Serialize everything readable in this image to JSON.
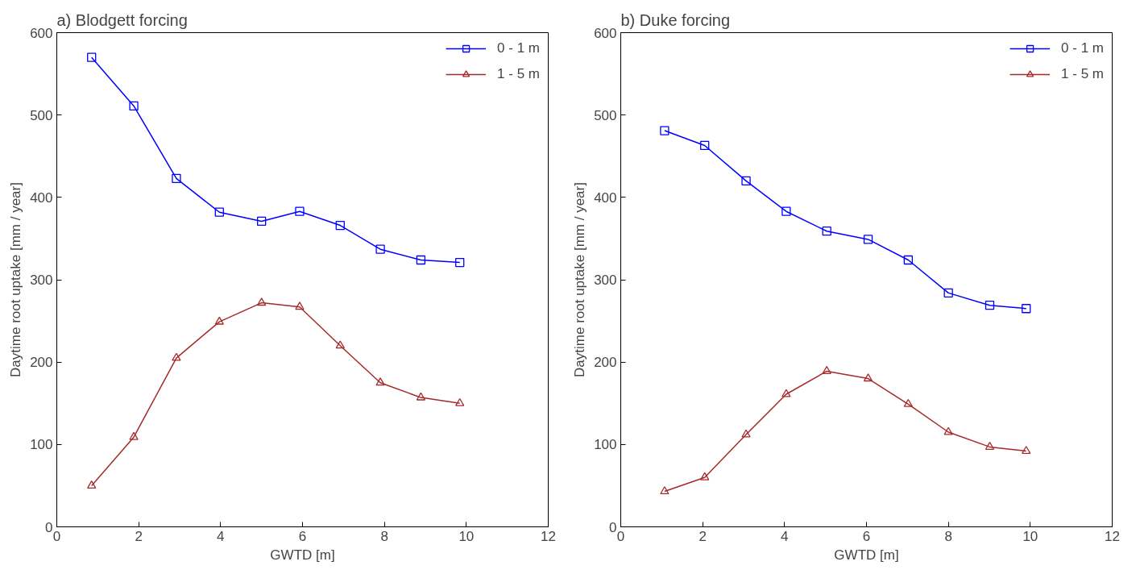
{
  "chart_data": [
    {
      "type": "line",
      "title": "a) Blodgett forcing",
      "xlabel": "GWTD [m]",
      "ylabel": "Daytime root uptake [mm / year]",
      "xlim": [
        0,
        12
      ],
      "ylim": [
        0,
        600
      ],
      "xticks": [
        0,
        2,
        4,
        6,
        8,
        10,
        12
      ],
      "yticks": [
        0,
        100,
        200,
        300,
        400,
        500,
        600
      ],
      "grid": false,
      "legend": "top right",
      "x": [
        0.85,
        1.88,
        2.92,
        3.97,
        5.0,
        5.93,
        6.92,
        7.9,
        8.89,
        9.84
      ],
      "series": [
        {
          "name": "0 - 1 m",
          "color": "#0000ff",
          "marker": "square",
          "values": [
            570,
            511,
            423,
            382,
            371,
            383,
            366,
            337,
            324,
            321
          ]
        },
        {
          "name": "1 - 5 m",
          "color": "#a52a2a",
          "marker": "triangle",
          "values": [
            50,
            109,
            205,
            249,
            272,
            267,
            220,
            175,
            157,
            150
          ]
        }
      ]
    },
    {
      "type": "line",
      "title": "b) Duke forcing",
      "xlabel": "GWTD [m]",
      "ylabel": "Daytime root uptake [mm / year]",
      "xlim": [
        0,
        12
      ],
      "ylim": [
        0,
        600
      ],
      "xticks": [
        0,
        2,
        4,
        6,
        8,
        10,
        12
      ],
      "yticks": [
        0,
        100,
        200,
        300,
        400,
        500,
        600
      ],
      "grid": false,
      "legend": "top right",
      "x": [
        1.07,
        2.05,
        3.06,
        4.04,
        5.03,
        6.04,
        7.02,
        8.0,
        9.01,
        9.9
      ],
      "series": [
        {
          "name": "0 - 1 m",
          "color": "#0000ff",
          "marker": "square",
          "values": [
            481,
            463,
            420,
            383,
            359,
            349,
            324,
            284,
            269,
            265
          ]
        },
        {
          "name": "1 - 5 m",
          "color": "#a52a2a",
          "marker": "triangle",
          "values": [
            43,
            60,
            112,
            161,
            189,
            180,
            149,
            115,
            97,
            92
          ]
        }
      ]
    }
  ]
}
